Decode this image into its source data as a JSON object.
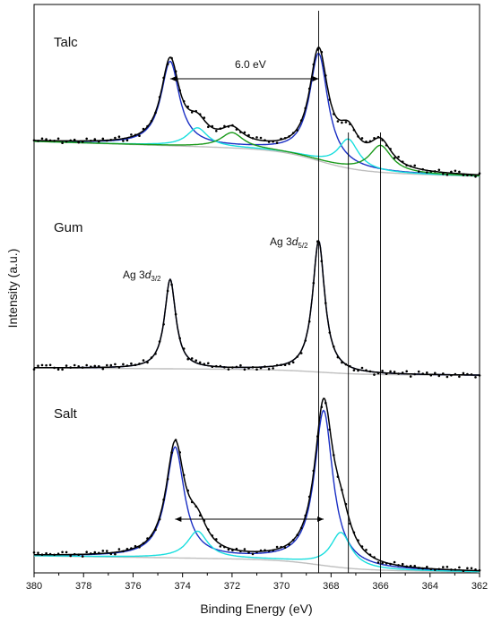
{
  "chart_data": {
    "type": "line",
    "xlabel": "Binding Energy (eV)",
    "ylabel": "Intensity (a.u.)",
    "xlim": [
      380,
      362
    ],
    "x_reversed": true,
    "x_ticks": [
      "380",
      "378",
      "376",
      "374",
      "372",
      "370",
      "368",
      "366",
      "364",
      "362"
    ],
    "y_ticks_shown": false,
    "reference_lines_eV": [
      368.5,
      367.3,
      366.0
    ],
    "annotations": {
      "talc_split": "6.0 eV",
      "peak_32_prefix": "Ag 3",
      "peak_32_d": "d",
      "peak_32_sub": "3/2",
      "peak_52_prefix": "Ag 3",
      "peak_52_d": "d",
      "peak_52_sub": "5/2"
    },
    "colors": {
      "envelope": "#000000",
      "main_component": "#1a2fc4",
      "secondary_component": "#19dede",
      "tertiary_component": "#1a9a1a",
      "background": "#bfbfbf"
    },
    "panels": [
      {
        "name": "Talc",
        "baseline_left": 0,
        "baseline_right": 0.3,
        "components": [
          {
            "role": "main_component",
            "peaks": [
              {
                "center": 374.5,
                "height": 0.72,
                "fwhm": 0.9
              },
              {
                "center": 368.5,
                "height": 0.92,
                "fwhm": 0.9
              }
            ]
          },
          {
            "role": "secondary_component",
            "peaks": [
              {
                "center": 373.4,
                "height": 0.16,
                "fwhm": 1.0
              },
              {
                "center": 367.3,
                "height": 0.25,
                "fwhm": 1.0
              }
            ]
          },
          {
            "role": "tertiary_component",
            "peaks": [
              {
                "center": 372.0,
                "height": 0.13,
                "fwhm": 1.1
              },
              {
                "center": 366.0,
                "height": 0.23,
                "fwhm": 1.1
              }
            ]
          }
        ]
      },
      {
        "name": "Gum",
        "baseline_left": 0,
        "baseline_right": 0.07,
        "components": [
          {
            "role": "main_component",
            "peaks": [
              {
                "center": 374.5,
                "height": 0.83,
                "fwhm": 0.55
              },
              {
                "center": 368.5,
                "height": 1.22,
                "fwhm": 0.6
              }
            ]
          }
        ]
      },
      {
        "name": "Salt",
        "baseline_left": 0,
        "baseline_right": 0.12,
        "components": [
          {
            "role": "main_component",
            "peaks": [
              {
                "center": 374.3,
                "height": 0.82,
                "fwhm": 0.9
              },
              {
                "center": 368.3,
                "height": 1.15,
                "fwhm": 0.9
              }
            ]
          },
          {
            "role": "secondary_component",
            "peaks": [
              {
                "center": 373.4,
                "height": 0.2,
                "fwhm": 1.0
              },
              {
                "center": 367.6,
                "height": 0.26,
                "fwhm": 1.0
              }
            ]
          }
        ]
      }
    ]
  }
}
